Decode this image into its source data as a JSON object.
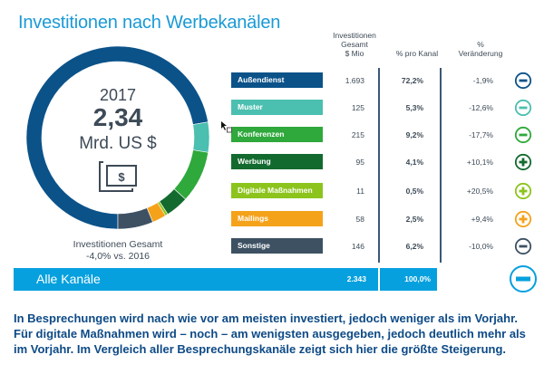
{
  "title": "Investitionen nach Werbekanälen",
  "center": {
    "year": "2017",
    "value": "2,34",
    "unit": "Mrd. US $",
    "icon": "money-bill-icon"
  },
  "total_caption": {
    "line1": "Investitionen Gesamt",
    "line2": "-4,0% vs. 2016"
  },
  "columns": {
    "invest_line1": "Investitionen",
    "invest_line2": "Gesamt",
    "invest_line3": "$ Mio",
    "share": "% pro Kanal",
    "change_line1": "%",
    "change_line2": "Veränderung"
  },
  "rows": [
    {
      "label": "Außendienst",
      "invest": "1.693",
      "share": "72,2%",
      "change": "-1,9%",
      "sign": "minus",
      "color": "#0b5289"
    },
    {
      "label": "Muster",
      "invest": "125",
      "share": "5,3%",
      "change": "-12,6%",
      "sign": "minus",
      "color": "#4bbfb0"
    },
    {
      "label": "Konferenzen",
      "invest": "215",
      "share": "9,2%",
      "change": "-17,7%",
      "sign": "minus",
      "color": "#2fa83c"
    },
    {
      "label": "Werbung",
      "invest": "95",
      "share": "4,1%",
      "change": "+10,1%",
      "sign": "plus",
      "color": "#136a2f"
    },
    {
      "label": "Digitale Maßnahmen",
      "invest": "11",
      "share": "0,5%",
      "change": "+20,5%",
      "sign": "plus",
      "color": "#8cc41d"
    },
    {
      "label": "Mailings",
      "invest": "58",
      "share": "2,5%",
      "change": "+9,4%",
      "sign": "plus",
      "color": "#f5a21b"
    },
    {
      "label": "Sonstige",
      "invest": "146",
      "share": "6,2%",
      "change": "-10,0%",
      "sign": "minus",
      "color": "#3d5163"
    }
  ],
  "total_row": {
    "label": "Alle Kanäle",
    "invest": "2.343",
    "share": "100,0%",
    "change": "-4.0%",
    "sign": "minus",
    "color": "#06a0de"
  },
  "summary": "In Besprechungen wird nach wie vor am meisten investiert, jedoch weniger als im Vorjahr. Für digitale Maßnahmen wird – noch – am wenigsten ausgegeben, jedoch deutlich mehr als im Vorjahr. Im Vergleich aller Besprechungskanäle zeigt sich hier die größte Steigerung.",
  "chart_data": {
    "type": "pie",
    "variant": "donut",
    "title": "Investitionen nach Werbekanälen",
    "categories": [
      "Außendienst",
      "Muster",
      "Konferenzen",
      "Werbung",
      "Digitale Maßnahmen",
      "Mailings",
      "Sonstige"
    ],
    "values": [
      1693,
      125,
      215,
      95,
      11,
      58,
      146
    ],
    "percent": [
      72.2,
      5.3,
      9.2,
      4.1,
      0.5,
      2.5,
      6.2
    ],
    "change_pct": [
      -1.9,
      -12.6,
      -17.7,
      10.1,
      20.5,
      9.4,
      -10.0
    ],
    "colors": [
      "#0b5289",
      "#4bbfb0",
      "#2fa83c",
      "#136a2f",
      "#8cc41d",
      "#f5a21b",
      "#3d5163"
    ],
    "total": 2343,
    "total_change_pct": -4.0,
    "unit": "$ Mio",
    "start": "bottom",
    "direction": "clockwise"
  }
}
